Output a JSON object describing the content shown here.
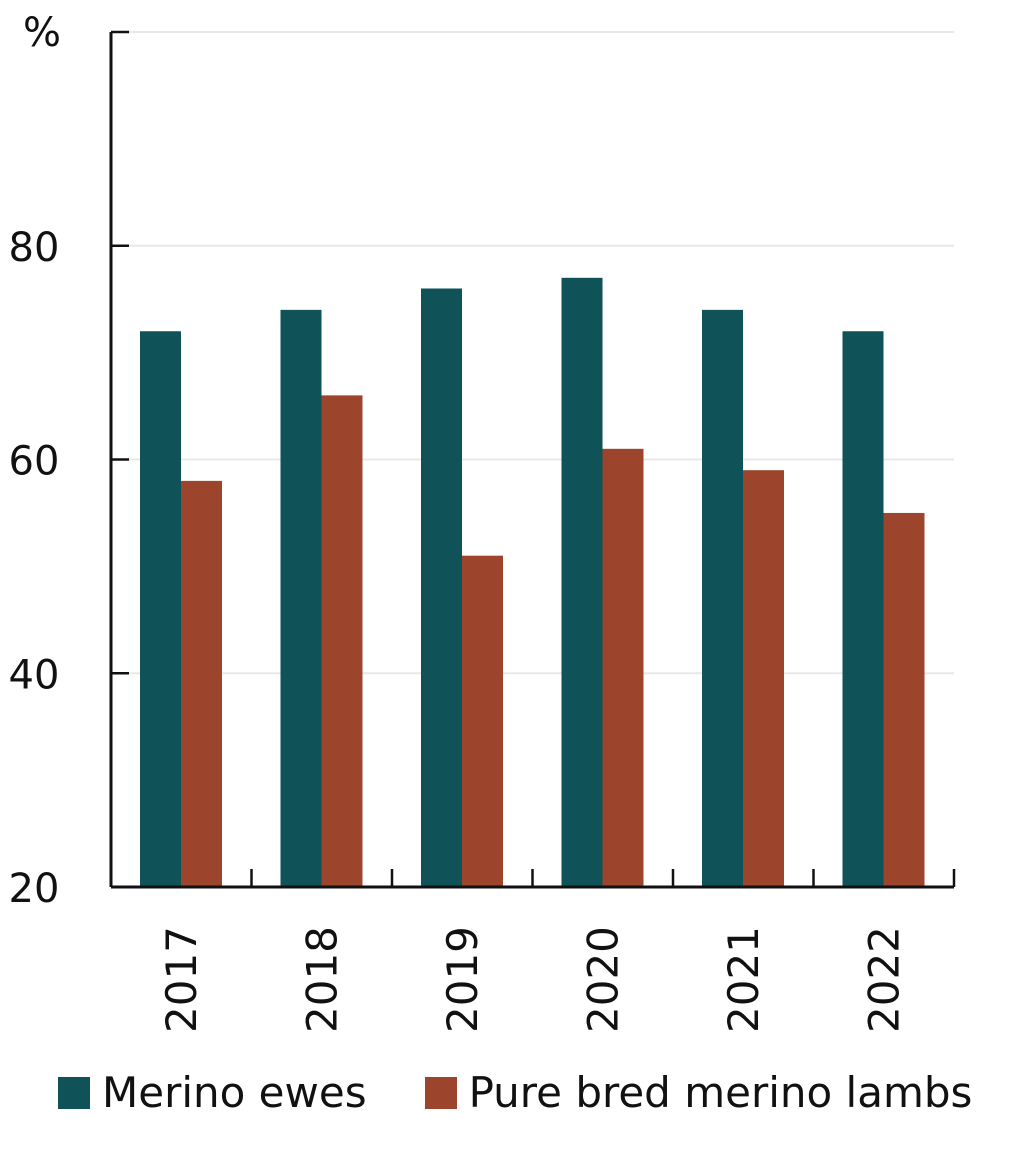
{
  "chart_data": {
    "type": "bar",
    "ylabel": "%",
    "ylim": [
      20,
      100
    ],
    "yticks": [
      20,
      40,
      60,
      80
    ],
    "categories": [
      "2017",
      "2018",
      "2019",
      "2020",
      "2021",
      "2022"
    ],
    "series": [
      {
        "name": "Merino ewes",
        "color": "#0f5257",
        "values": [
          72,
          74,
          76,
          77,
          74,
          72
        ]
      },
      {
        "name": "Pure bred merino lambs",
        "color": "#9c442c",
        "values": [
          58,
          66,
          51,
          61,
          59,
          55
        ]
      }
    ],
    "grid": true,
    "legend_position": "bottom"
  }
}
